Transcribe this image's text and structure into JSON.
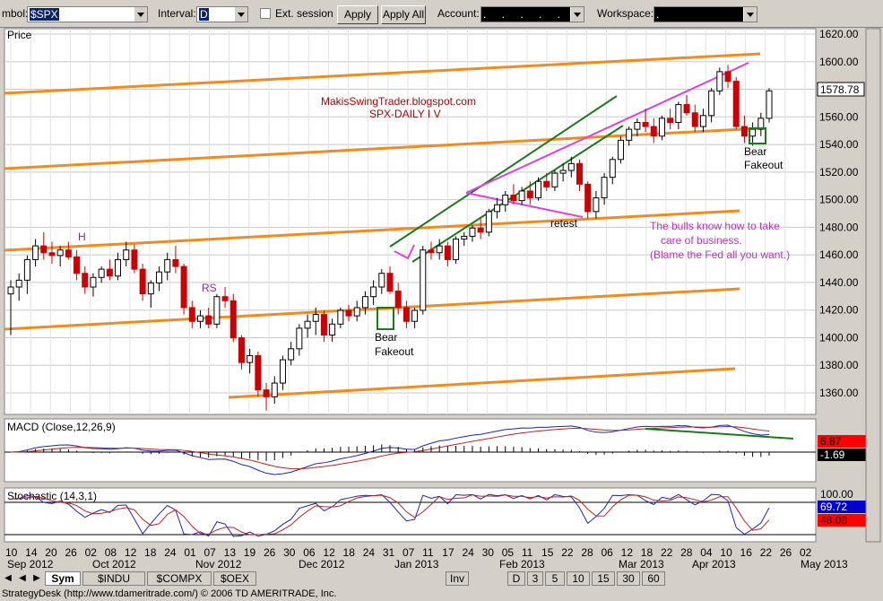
{
  "toolbar": {
    "symbol_label": "mbol:",
    "symbol_value": "$SPX",
    "interval_label": "Interval:",
    "interval_value": "D",
    "ext_session_label": "Ext. session",
    "apply_label": "Apply",
    "apply_all_label": "Apply All",
    "account_label": "Account:",
    "account_value": ". . . . .",
    "workspace_label": "Workspace:",
    "workspace_value": "."
  },
  "panels": {
    "price_label": "Price",
    "macd_label": "MACD (Close,12,26,9)",
    "stoch_label": "Stochastic (14,3,1)"
  },
  "annotations": {
    "blog": "MakisSwingTrader.blogspot.com",
    "subtitle": "SPX-DAILY  I V",
    "h": "H",
    "rs": "RS",
    "bear1_a": "Bear",
    "bear1_b": "Fakeout",
    "bear2_a": "Bear",
    "bear2_b": "Fakeout",
    "retest": "retest",
    "note1": "The bulls know how to take",
    "note2": "care of business.",
    "note3": "(Blame the Fed all you want.)"
  },
  "price_axis": [
    "1620.00",
    "1600.00",
    "1580.00",
    "1560.00",
    "1540.00",
    "1520.00",
    "1500.00",
    "1480.00",
    "1460.00",
    "1440.00",
    "1420.00",
    "1400.00",
    "1380.00",
    "1360.00"
  ],
  "last_price": "1578.78",
  "macd_values": [
    "6.87",
    "-1.69"
  ],
  "stoch_values": [
    "100.00",
    "69.72",
    "48.08"
  ],
  "x_days": [
    "10",
    "14",
    "20",
    "26",
    "02",
    "08",
    "12",
    "18",
    "24",
    "01",
    "07",
    "13",
    "19",
    "26",
    "30",
    "06",
    "12",
    "18",
    "24",
    "31",
    "07",
    "11",
    "17",
    "24",
    "30",
    "05",
    "11",
    "15",
    "22",
    "28",
    "06",
    "12",
    "18",
    "22",
    "28",
    "04",
    "10",
    "16",
    "22",
    "26",
    "02"
  ],
  "x_months": [
    "Sep 2012",
    "Oct 2012",
    "Nov 2012",
    "Dec 2012",
    "Jan 2013",
    "Feb 2013",
    "Mar 2013",
    "Apr 2013",
    "May 2013"
  ],
  "tabs": [
    "Sym",
    "$INDU",
    "$COMPX",
    "$OEX",
    "Inv",
    "D",
    "3",
    "5",
    "10",
    "15",
    "30",
    "60"
  ],
  "status": "StrategyDesk  (http://www.tdameritrade.com/) © 2006 TD AMERITRADE, Inc.",
  "colors": {
    "orange": "#f08c1e",
    "magenta": "#dd40dd",
    "green": "#1a7a1a",
    "up": "#000000",
    "down": "#cc0000",
    "macd": "#2020c0",
    "signal": "#c02020"
  },
  "chart_data": {
    "type": "candlestick",
    "ylim": [
      1340,
      1625
    ],
    "ohlc": [
      [
        1430,
        1440,
        1400,
        1435
      ],
      [
        1435,
        1445,
        1425,
        1440
      ],
      [
        1440,
        1458,
        1430,
        1455
      ],
      [
        1455,
        1470,
        1450,
        1465
      ],
      [
        1465,
        1475,
        1455,
        1460
      ],
      [
        1460,
        1468,
        1452,
        1458
      ],
      [
        1458,
        1465,
        1450,
        1462
      ],
      [
        1462,
        1468,
        1455,
        1457
      ],
      [
        1457,
        1462,
        1440,
        1445
      ],
      [
        1445,
        1450,
        1430,
        1435
      ],
      [
        1435,
        1445,
        1428,
        1442
      ],
      [
        1442,
        1450,
        1438,
        1448
      ],
      [
        1448,
        1455,
        1440,
        1443
      ],
      [
        1443,
        1460,
        1440,
        1455
      ],
      [
        1455,
        1468,
        1450,
        1462
      ],
      [
        1462,
        1466,
        1445,
        1448
      ],
      [
        1448,
        1452,
        1425,
        1430
      ],
      [
        1430,
        1440,
        1420,
        1438
      ],
      [
        1438,
        1450,
        1432,
        1446
      ],
      [
        1446,
        1460,
        1440,
        1455
      ],
      [
        1455,
        1465,
        1445,
        1450
      ],
      [
        1450,
        1452,
        1415,
        1420
      ],
      [
        1420,
        1425,
        1405,
        1410
      ],
      [
        1410,
        1418,
        1405,
        1414
      ],
      [
        1414,
        1420,
        1405,
        1408
      ],
      [
        1408,
        1430,
        1405,
        1428
      ],
      [
        1428,
        1435,
        1420,
        1425
      ],
      [
        1425,
        1430,
        1395,
        1398
      ],
      [
        1398,
        1400,
        1375,
        1380
      ],
      [
        1380,
        1390,
        1372,
        1385
      ],
      [
        1385,
        1388,
        1355,
        1360
      ],
      [
        1360,
        1365,
        1345,
        1355
      ],
      [
        1355,
        1370,
        1350,
        1365
      ],
      [
        1365,
        1385,
        1360,
        1382
      ],
      [
        1382,
        1395,
        1378,
        1390
      ],
      [
        1390,
        1408,
        1385,
        1405
      ],
      [
        1405,
        1415,
        1398,
        1410
      ],
      [
        1410,
        1420,
        1400,
        1415
      ],
      [
        1415,
        1418,
        1395,
        1400
      ],
      [
        1400,
        1412,
        1395,
        1408
      ],
      [
        1408,
        1420,
        1405,
        1418
      ],
      [
        1418,
        1422,
        1410,
        1414
      ],
      [
        1414,
        1425,
        1410,
        1420
      ],
      [
        1420,
        1432,
        1415,
        1428
      ],
      [
        1428,
        1440,
        1422,
        1435
      ],
      [
        1435,
        1448,
        1430,
        1445
      ],
      [
        1445,
        1450,
        1430,
        1432
      ],
      [
        1432,
        1438,
        1415,
        1420
      ],
      [
        1420,
        1425,
        1405,
        1410
      ],
      [
        1410,
        1420,
        1405,
        1418
      ],
      [
        1418,
        1465,
        1415,
        1462
      ],
      [
        1462,
        1468,
        1455,
        1460
      ],
      [
        1460,
        1470,
        1455,
        1465
      ],
      [
        1465,
        1468,
        1450,
        1455
      ],
      [
        1455,
        1472,
        1452,
        1470
      ],
      [
        1470,
        1475,
        1465,
        1472
      ],
      [
        1472,
        1480,
        1468,
        1478
      ],
      [
        1478,
        1485,
        1470,
        1475
      ],
      [
        1475,
        1492,
        1472,
        1490
      ],
      [
        1490,
        1500,
        1485,
        1495
      ],
      [
        1495,
        1505,
        1490,
        1502
      ],
      [
        1502,
        1510,
        1495,
        1498
      ],
      [
        1498,
        1508,
        1495,
        1505
      ],
      [
        1505,
        1512,
        1495,
        1500
      ],
      [
        1500,
        1515,
        1498,
        1512
      ],
      [
        1512,
        1518,
        1505,
        1508
      ],
      [
        1508,
        1520,
        1505,
        1518
      ],
      [
        1518,
        1525,
        1512,
        1520
      ],
      [
        1520,
        1530,
        1515,
        1525
      ],
      [
        1525,
        1528,
        1505,
        1510
      ],
      [
        1510,
        1512,
        1485,
        1490
      ],
      [
        1490,
        1505,
        1485,
        1500
      ],
      [
        1500,
        1518,
        1495,
        1515
      ],
      [
        1515,
        1530,
        1510,
        1528
      ],
      [
        1528,
        1545,
        1525,
        1542
      ],
      [
        1542,
        1552,
        1538,
        1550
      ],
      [
        1550,
        1558,
        1545,
        1555
      ],
      [
        1555,
        1565,
        1548,
        1552
      ],
      [
        1552,
        1558,
        1540,
        1545
      ],
      [
        1545,
        1560,
        1542,
        1558
      ],
      [
        1558,
        1565,
        1550,
        1555
      ],
      [
        1555,
        1570,
        1550,
        1568
      ],
      [
        1568,
        1575,
        1560,
        1562
      ],
      [
        1562,
        1568,
        1548,
        1552
      ],
      [
        1552,
        1565,
        1548,
        1560
      ],
      [
        1560,
        1580,
        1555,
        1578
      ],
      [
        1578,
        1595,
        1575,
        1592
      ],
      [
        1592,
        1597,
        1580,
        1585
      ],
      [
        1585,
        1588,
        1550,
        1552
      ],
      [
        1552,
        1560,
        1540,
        1545
      ],
      [
        1545,
        1555,
        1538,
        1550
      ],
      [
        1550,
        1562,
        1545,
        1558
      ],
      [
        1558,
        1580,
        1555,
        1578
      ]
    ]
  }
}
